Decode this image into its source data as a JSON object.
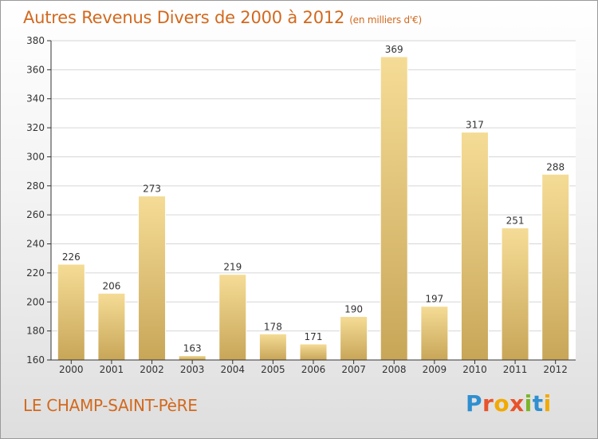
{
  "header": {
    "title": "Autres Revenus Divers de 2000 à 2012",
    "unit_note": "(en milliers d'€)"
  },
  "footer": {
    "city": "LE CHAMP-SAINT-PèRE",
    "logo_letters": [
      "P",
      "r",
      "o",
      "x",
      "i",
      "t",
      "i"
    ],
    "logo_colors": [
      "#2f8fd0",
      "#e8532b",
      "#f2a900",
      "#e8532b",
      "#7bb52b",
      "#2f8fd0",
      "#f2a900"
    ]
  },
  "chart_data": {
    "type": "bar",
    "title": "Autres Revenus Divers de 2000 à 2012",
    "xlabel": "",
    "ylabel": "",
    "categories": [
      "2000",
      "2001",
      "2002",
      "2003",
      "2004",
      "2005",
      "2006",
      "2007",
      "2008",
      "2009",
      "2010",
      "2011",
      "2012"
    ],
    "values": [
      226,
      206,
      273,
      163,
      219,
      178,
      171,
      190,
      369,
      197,
      317,
      251,
      288
    ],
    "ylim": [
      160,
      380
    ],
    "yticks": [
      160,
      180,
      200,
      220,
      240,
      260,
      280,
      300,
      320,
      340,
      360,
      380
    ],
    "grid": "horizontal",
    "colors": {
      "bar_top": "#f5dc96",
      "bar_bottom": "#c8a658",
      "grid": "#d6d6d6",
      "axis": "#333333"
    }
  }
}
